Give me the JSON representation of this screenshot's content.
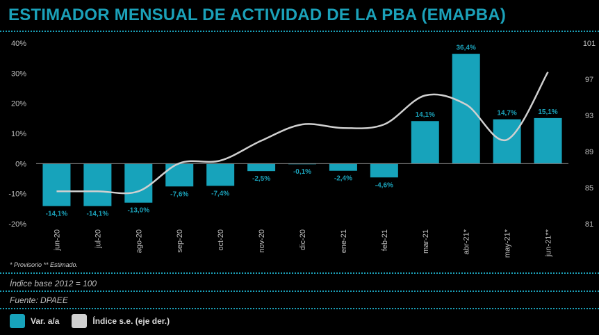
{
  "title": "ESTIMADOR MENSUAL DE ACTIVIDAD DE LA PBA (EMAPBA)",
  "colors": {
    "accent": "#1ba1b9",
    "bar": "#17a3bb",
    "line": "#d0d0d0"
  },
  "footnote": "* Provisorio  ** Estimado.",
  "index_note": "Índice base 2012 = 100",
  "source": "Fuente: DPAEE",
  "legend": {
    "bars": "Var. a/a",
    "line": "Índice s.e. (eje der.)"
  },
  "chart_data": {
    "type": "bar",
    "categories": [
      "jun-20",
      "jul-20",
      "ago-20",
      "sep-20",
      "oct-20",
      "nov-20",
      "dic-20",
      "ene-21",
      "feb-21",
      "mar-21",
      "abr-21*",
      "may-21*",
      "jun-21**"
    ],
    "series": [
      {
        "name": "Var. a/a",
        "type": "bar",
        "values": [
          -14.1,
          -14.1,
          -13.0,
          -7.6,
          -7.4,
          -2.5,
          -0.1,
          -2.4,
          -4.6,
          14.1,
          36.4,
          14.7,
          15.1
        ],
        "labels": [
          "-14,1%",
          "-14,1%",
          "-13,0%",
          "-7,6%",
          "-7,4%",
          "-2,5%",
          "-0,1%",
          "-2,4%",
          "-4,6%",
          "14,1%",
          "36,4%",
          "14,7%",
          "15,1%"
        ]
      },
      {
        "name": "Índice s.e. (eje der.)",
        "type": "line",
        "axis": "right",
        "values": [
          84.6,
          84.6,
          84.6,
          87.7,
          88.0,
          90.2,
          92.0,
          91.6,
          92.0,
          95.2,
          94.2,
          90.3,
          97.8
        ]
      }
    ],
    "y_left": {
      "min": -20,
      "max": 40,
      "ticks": [
        "-20%",
        "-10%",
        "0%",
        "10%",
        "20%",
        "30%",
        "40%"
      ]
    },
    "y_right": {
      "min": 81,
      "max": 101,
      "ticks": [
        "81",
        "85",
        "89",
        "93",
        "97",
        "101"
      ]
    }
  }
}
